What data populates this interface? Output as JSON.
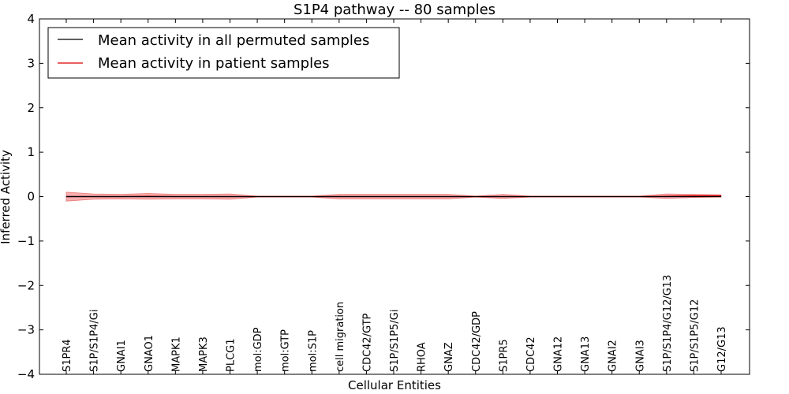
{
  "chart_data": {
    "type": "line",
    "title": "S1P4 pathway -- 80 samples",
    "xlabel": "Cellular Entities",
    "ylabel": "Inferred Activity",
    "ylim": [
      -4,
      4
    ],
    "yticks": [
      -4,
      -3,
      -2,
      -1,
      0,
      1,
      2,
      3,
      4
    ],
    "ytick_labels": [
      "−4",
      "−3",
      "−2",
      "−1",
      "0",
      "1",
      "2",
      "3",
      "4"
    ],
    "categories": [
      "S1PR4",
      "S1P/S1P4/Gi",
      "GNAI1",
      "GNAO1",
      "MAPK1",
      "MAPK3",
      "PLCG1",
      "mol:GDP",
      "mol:GTP",
      "mol:S1P",
      "cell migration",
      "CDC42/GTP",
      "S1P/S1P5/Gi",
      "RHOA",
      "GNAZ",
      "CDC42/GDP",
      "S1PR5",
      "CDC42",
      "GNA12",
      "GNA13",
      "GNAI2",
      "GNAI3",
      "S1P/S1P4/G12/G13",
      "S1P/S1P5/G12",
      "G12/G13"
    ],
    "series": [
      {
        "name": "Mean activity in all permuted samples",
        "color": "#000000",
        "values": [
          0,
          0,
          0,
          0,
          0,
          0,
          0,
          0,
          0,
          0,
          0,
          0,
          0,
          0,
          0,
          0,
          0,
          0,
          0,
          0,
          0,
          0,
          0,
          0,
          0
        ],
        "band": [
          [
            -0.01,
            0.01
          ],
          [
            -0.01,
            0.01
          ],
          [
            -0.01,
            0.01
          ],
          [
            -0.01,
            0.01
          ],
          [
            -0.01,
            0.01
          ],
          [
            -0.01,
            0.01
          ],
          [
            -0.01,
            0.01
          ],
          [
            -0.01,
            0.01
          ],
          [
            -0.01,
            0.01
          ],
          [
            -0.01,
            0.01
          ],
          [
            -0.01,
            0.01
          ],
          [
            -0.01,
            0.01
          ],
          [
            -0.01,
            0.01
          ],
          [
            -0.01,
            0.01
          ],
          [
            -0.01,
            0.01
          ],
          [
            -0.01,
            0.01
          ],
          [
            -0.01,
            0.01
          ],
          [
            -0.01,
            0.01
          ],
          [
            -0.01,
            0.01
          ],
          [
            -0.01,
            0.01
          ],
          [
            -0.01,
            0.01
          ],
          [
            -0.01,
            0.01
          ],
          [
            -0.01,
            0.01
          ],
          [
            -0.01,
            0.01
          ],
          [
            -0.01,
            0.01
          ]
        ],
        "band_color": "#9999dd"
      },
      {
        "name": "Mean activity in patient samples",
        "color": "#dd0000",
        "values": [
          0.0,
          0.0,
          0.0,
          0.01,
          0.0,
          0.0,
          0.0,
          0.0,
          0.0,
          0.0,
          0.0,
          0.0,
          0.0,
          0.0,
          0.0,
          0.0,
          0.0,
          0.0,
          0.0,
          0.0,
          0.0,
          0.0,
          0.01,
          0.02,
          0.02
        ],
        "band": [
          [
            -0.1,
            0.1
          ],
          [
            -0.06,
            0.06
          ],
          [
            -0.05,
            0.05
          ],
          [
            -0.06,
            0.07
          ],
          [
            -0.05,
            0.05
          ],
          [
            -0.05,
            0.05
          ],
          [
            -0.06,
            0.06
          ],
          [
            -0.01,
            0.01
          ],
          [
            -0.01,
            0.01
          ],
          [
            -0.01,
            0.01
          ],
          [
            -0.05,
            0.05
          ],
          [
            -0.05,
            0.05
          ],
          [
            -0.05,
            0.05
          ],
          [
            -0.05,
            0.05
          ],
          [
            -0.05,
            0.05
          ],
          [
            -0.01,
            0.01
          ],
          [
            -0.04,
            0.05
          ],
          [
            -0.01,
            0.01
          ],
          [
            -0.01,
            0.01
          ],
          [
            -0.01,
            0.01
          ],
          [
            -0.01,
            0.01
          ],
          [
            -0.01,
            0.01
          ],
          [
            -0.04,
            0.06
          ],
          [
            -0.02,
            0.05
          ],
          [
            -0.01,
            0.04
          ]
        ],
        "band_color": "#ee7777"
      }
    ],
    "legend_position": "top-left",
    "grid": false
  }
}
